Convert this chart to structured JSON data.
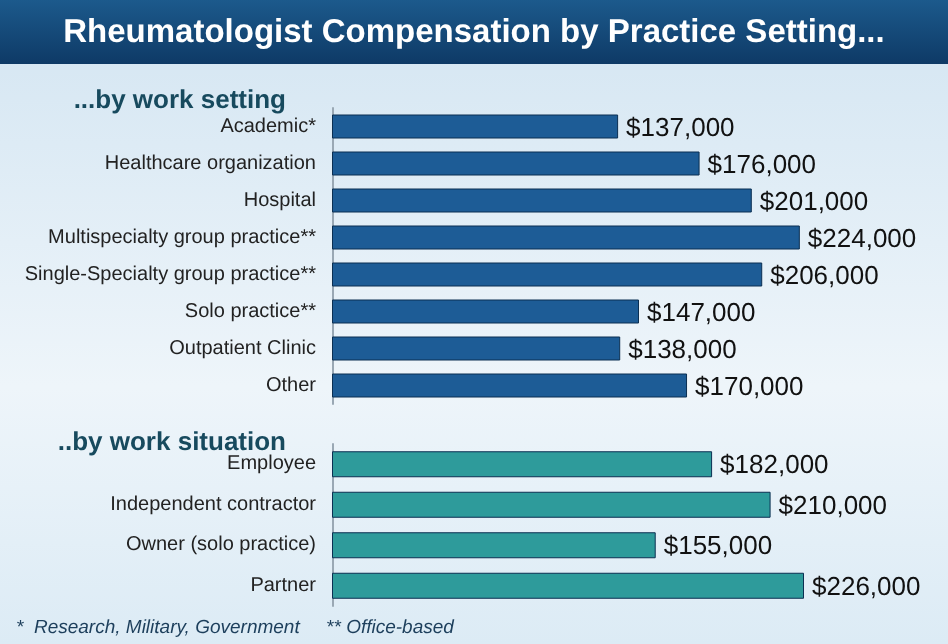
{
  "chart_data": [
    {
      "type": "bar",
      "orientation": "horizontal",
      "title": "Rheumatologist Compensation by Practice Setting...",
      "subtitle": "...by work setting",
      "categories": [
        "Academic*",
        "Healthcare organization",
        "Hospital",
        "Multispecialty group practice**",
        "Single-Specialty group practice**",
        "Solo practice**",
        "Outpatient Clinic",
        "Other"
      ],
      "values": [
        137000,
        176000,
        201000,
        224000,
        206000,
        147000,
        138000,
        170000
      ],
      "value_labels": [
        "$137,000",
        "$176,000",
        "$201,000",
        "$224,000",
        "$206,000",
        "$147,000",
        "$138,000",
        "$170,000"
      ],
      "color": "#1d5c96"
    },
    {
      "type": "bar",
      "orientation": "horizontal",
      "subtitle": "..by work situation",
      "categories": [
        "Employee",
        "Independent contractor",
        "Owner (solo practice)",
        "Partner"
      ],
      "values": [
        182000,
        210000,
        155000,
        226000
      ],
      "value_labels": [
        "$182,000",
        "$210,000",
        "$155,000",
        "$226,000"
      ],
      "color": "#2e9b9b",
      "annotations": [
        "*  Research, Military, Government     ** Office-based"
      ]
    }
  ]
}
